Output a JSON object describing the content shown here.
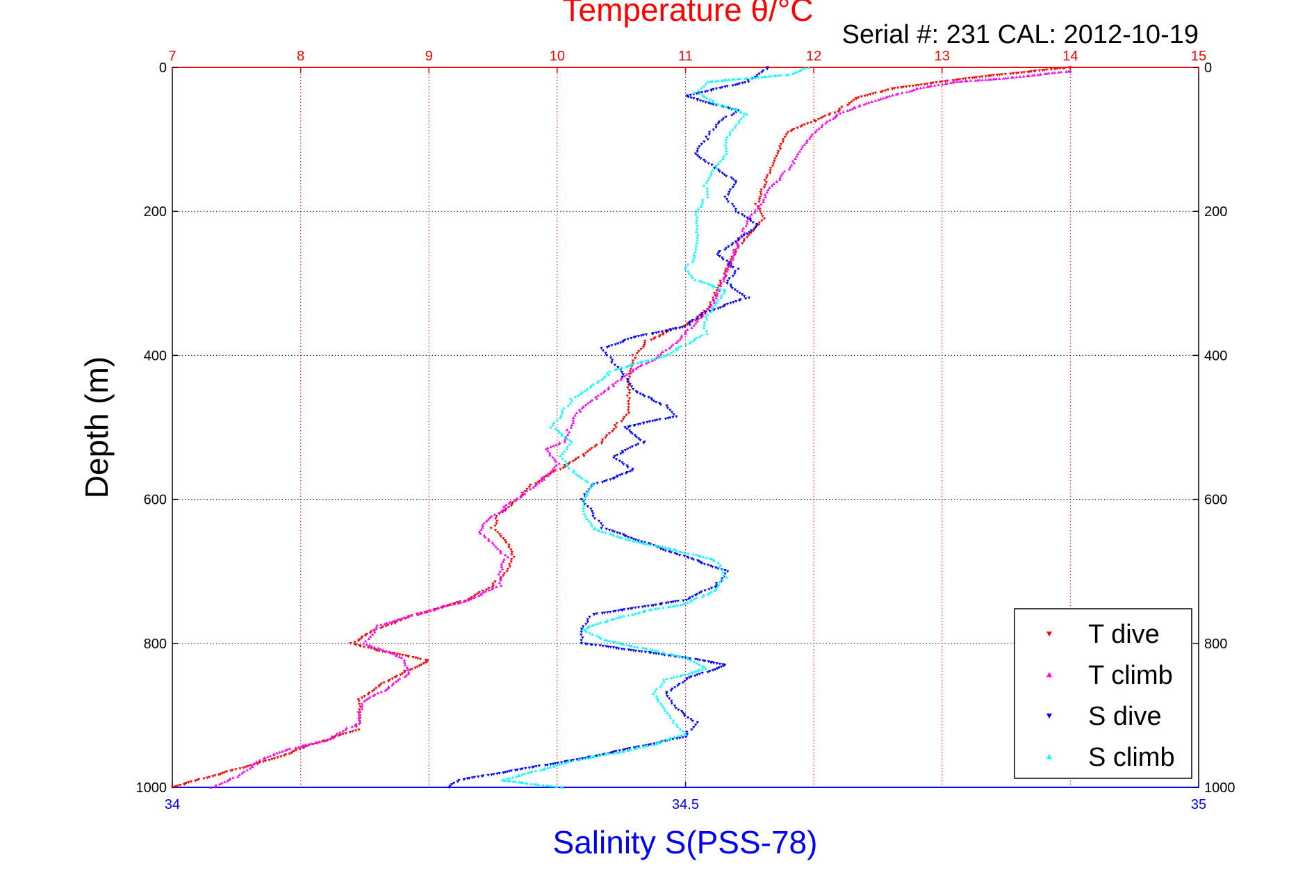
{
  "chart_data": {
    "type": "scatter",
    "title": "Temperature θ/°C",
    "subtitle": "Serial #: 231   CAL: 2012-10-19",
    "xlabel": "Salinity S(PSS-78)",
    "ylabel": "Depth (m)",
    "x_top": {
      "label": "Temperature θ/°C",
      "range": [
        7,
        15
      ],
      "ticks": [
        "7",
        "8",
        "9",
        "10",
        "11",
        "12",
        "13",
        "14",
        "15"
      ],
      "color": "#ff0000"
    },
    "x_bottom": {
      "label": "Salinity S(PSS-78)",
      "range": [
        34,
        35
      ],
      "ticks": [
        "34",
        "34.5",
        "35"
      ],
      "color": "#0000ff"
    },
    "y": {
      "range": [
        0,
        1000
      ],
      "reversed": true,
      "ticks": [
        "0",
        "200",
        "400",
        "600",
        "800",
        "1000"
      ]
    },
    "grid": true,
    "legend_position": "bottom-right",
    "legend": [
      "T dive",
      "T climb",
      "S dive",
      "S climb"
    ],
    "series": [
      {
        "name": "T dive",
        "axis": "temperature",
        "color": "#ff0000",
        "marker": "triangle-down",
        "points": [
          [
            14.0,
            0
          ],
          [
            13.2,
            15
          ],
          [
            12.6,
            30
          ],
          [
            12.3,
            45
          ],
          [
            12.2,
            60
          ],
          [
            12.0,
            75
          ],
          [
            11.8,
            90
          ],
          [
            11.75,
            110
          ],
          [
            11.7,
            130
          ],
          [
            11.65,
            150
          ],
          [
            11.6,
            170
          ],
          [
            11.55,
            190
          ],
          [
            11.6,
            210
          ],
          [
            11.5,
            230
          ],
          [
            11.4,
            250
          ],
          [
            11.35,
            270
          ],
          [
            11.3,
            290
          ],
          [
            11.25,
            310
          ],
          [
            11.2,
            330
          ],
          [
            11.1,
            350
          ],
          [
            10.9,
            365
          ],
          [
            10.7,
            380
          ],
          [
            10.6,
            400
          ],
          [
            10.55,
            430
          ],
          [
            10.55,
            460
          ],
          [
            10.55,
            480
          ],
          [
            10.45,
            500
          ],
          [
            10.35,
            520
          ],
          [
            10.2,
            540
          ],
          [
            10.0,
            560
          ],
          [
            9.8,
            580
          ],
          [
            9.7,
            600
          ],
          [
            9.55,
            620
          ],
          [
            9.5,
            640
          ],
          [
            9.6,
            660
          ],
          [
            9.65,
            680
          ],
          [
            9.6,
            700
          ],
          [
            9.5,
            720
          ],
          [
            9.3,
            740
          ],
          [
            8.9,
            760
          ],
          [
            8.6,
            780
          ],
          [
            8.4,
            800
          ],
          [
            8.6,
            810
          ],
          [
            8.9,
            820
          ],
          [
            9.0,
            825
          ],
          [
            8.8,
            840
          ],
          [
            8.6,
            860
          ],
          [
            8.45,
            880
          ],
          [
            8.45,
            900
          ],
          [
            8.45,
            920
          ],
          [
            8.1,
            940
          ],
          [
            7.8,
            960
          ],
          [
            7.5,
            975
          ],
          [
            7.2,
            990
          ],
          [
            7.0,
            1000
          ]
        ]
      },
      {
        "name": "T climb",
        "axis": "temperature",
        "color": "#ff00ff",
        "marker": "triangle-up",
        "points": [
          [
            7.3,
            1000
          ],
          [
            7.5,
            985
          ],
          [
            7.7,
            960
          ],
          [
            7.95,
            945
          ],
          [
            8.2,
            935
          ],
          [
            8.45,
            910
          ],
          [
            8.5,
            880
          ],
          [
            8.7,
            860
          ],
          [
            8.85,
            840
          ],
          [
            8.8,
            820
          ],
          [
            8.5,
            800
          ],
          [
            8.6,
            775
          ],
          [
            8.9,
            760
          ],
          [
            9.3,
            740
          ],
          [
            9.55,
            720
          ],
          [
            9.55,
            700
          ],
          [
            9.6,
            680
          ],
          [
            9.5,
            660
          ],
          [
            9.4,
            645
          ],
          [
            9.45,
            630
          ],
          [
            9.6,
            610
          ],
          [
            9.75,
            590
          ],
          [
            9.9,
            570
          ],
          [
            10.0,
            550
          ],
          [
            9.9,
            530
          ],
          [
            10.05,
            520
          ],
          [
            10.1,
            500
          ],
          [
            10.15,
            480
          ],
          [
            10.3,
            460
          ],
          [
            10.45,
            440
          ],
          [
            10.6,
            420
          ],
          [
            10.8,
            400
          ],
          [
            11.0,
            370
          ],
          [
            11.1,
            350
          ],
          [
            11.2,
            330
          ],
          [
            11.25,
            310
          ],
          [
            11.3,
            290
          ],
          [
            11.35,
            270
          ],
          [
            11.4,
            250
          ],
          [
            11.45,
            230
          ],
          [
            11.5,
            210
          ],
          [
            11.6,
            190
          ],
          [
            11.65,
            170
          ],
          [
            11.75,
            150
          ],
          [
            11.85,
            130
          ],
          [
            11.9,
            110
          ],
          [
            12.0,
            90
          ],
          [
            12.1,
            75
          ],
          [
            12.25,
            60
          ],
          [
            12.5,
            45
          ],
          [
            12.8,
            30
          ],
          [
            13.1,
            20
          ],
          [
            13.5,
            15
          ],
          [
            14.0,
            5
          ]
        ]
      },
      {
        "name": "S dive",
        "axis": "salinity",
        "color": "#0000ff",
        "marker": "triangle-down",
        "points": [
          [
            34.58,
            0
          ],
          [
            34.56,
            20
          ],
          [
            34.5,
            40
          ],
          [
            34.55,
            60
          ],
          [
            34.53,
            80
          ],
          [
            34.52,
            100
          ],
          [
            34.51,
            120
          ],
          [
            34.53,
            140
          ],
          [
            34.55,
            160
          ],
          [
            34.54,
            180
          ],
          [
            34.55,
            200
          ],
          [
            34.57,
            220
          ],
          [
            34.55,
            240
          ],
          [
            34.53,
            260
          ],
          [
            34.55,
            280
          ],
          [
            34.54,
            300
          ],
          [
            34.56,
            320
          ],
          [
            34.52,
            340
          ],
          [
            34.5,
            360
          ],
          [
            34.45,
            375
          ],
          [
            34.42,
            390
          ],
          [
            34.43,
            410
          ],
          [
            34.44,
            430
          ],
          [
            34.45,
            450
          ],
          [
            34.48,
            470
          ],
          [
            34.49,
            485
          ],
          [
            34.44,
            500
          ],
          [
            34.46,
            520
          ],
          [
            34.43,
            540
          ],
          [
            34.45,
            560
          ],
          [
            34.41,
            580
          ],
          [
            34.4,
            600
          ],
          [
            34.41,
            620
          ],
          [
            34.42,
            640
          ],
          [
            34.46,
            660
          ],
          [
            34.5,
            680
          ],
          [
            34.54,
            700
          ],
          [
            34.53,
            720
          ],
          [
            34.5,
            740
          ],
          [
            34.41,
            760
          ],
          [
            34.4,
            780
          ],
          [
            34.4,
            800
          ],
          [
            34.45,
            810
          ],
          [
            34.5,
            820
          ],
          [
            34.54,
            830
          ],
          [
            34.5,
            850
          ],
          [
            34.48,
            870
          ],
          [
            34.49,
            890
          ],
          [
            34.51,
            910
          ],
          [
            34.5,
            930
          ],
          [
            34.45,
            945
          ],
          [
            34.4,
            960
          ],
          [
            34.34,
            975
          ],
          [
            34.28,
            990
          ],
          [
            34.27,
            1000
          ]
        ]
      },
      {
        "name": "S climb",
        "axis": "salinity",
        "color": "#00ffff",
        "marker": "triangle-up",
        "points": [
          [
            34.38,
            1000
          ],
          [
            34.32,
            990
          ],
          [
            34.36,
            975
          ],
          [
            34.4,
            960
          ],
          [
            34.44,
            950
          ],
          [
            34.47,
            940
          ],
          [
            34.5,
            925
          ],
          [
            34.49,
            910
          ],
          [
            34.48,
            890
          ],
          [
            34.47,
            870
          ],
          [
            34.48,
            850
          ],
          [
            34.52,
            835
          ],
          [
            34.5,
            820
          ],
          [
            34.47,
            810
          ],
          [
            34.42,
            795
          ],
          [
            34.4,
            780
          ],
          [
            34.42,
            770
          ],
          [
            34.46,
            755
          ],
          [
            34.5,
            745
          ],
          [
            34.53,
            725
          ],
          [
            34.54,
            705
          ],
          [
            34.53,
            685
          ],
          [
            34.49,
            670
          ],
          [
            34.44,
            655
          ],
          [
            34.41,
            640
          ],
          [
            34.4,
            620
          ],
          [
            34.4,
            600
          ],
          [
            34.41,
            580
          ],
          [
            34.39,
            560
          ],
          [
            34.38,
            540
          ],
          [
            34.39,
            520
          ],
          [
            34.37,
            500
          ],
          [
            34.38,
            480
          ],
          [
            34.39,
            460
          ],
          [
            34.41,
            440
          ],
          [
            34.43,
            420
          ],
          [
            34.48,
            400
          ],
          [
            34.5,
            385
          ],
          [
            34.52,
            370
          ],
          [
            34.52,
            350
          ],
          [
            34.53,
            330
          ],
          [
            34.54,
            310
          ],
          [
            34.51,
            295
          ],
          [
            34.5,
            280
          ],
          [
            34.51,
            260
          ],
          [
            34.51,
            240
          ],
          [
            34.51,
            220
          ],
          [
            34.51,
            200
          ],
          [
            34.52,
            180
          ],
          [
            34.52,
            160
          ],
          [
            34.53,
            140
          ],
          [
            34.54,
            120
          ],
          [
            34.54,
            100
          ],
          [
            34.55,
            80
          ],
          [
            34.56,
            65
          ],
          [
            34.53,
            50
          ],
          [
            34.51,
            35
          ],
          [
            34.52,
            20
          ],
          [
            34.6,
            10
          ],
          [
            34.62,
            0
          ]
        ]
      }
    ]
  }
}
